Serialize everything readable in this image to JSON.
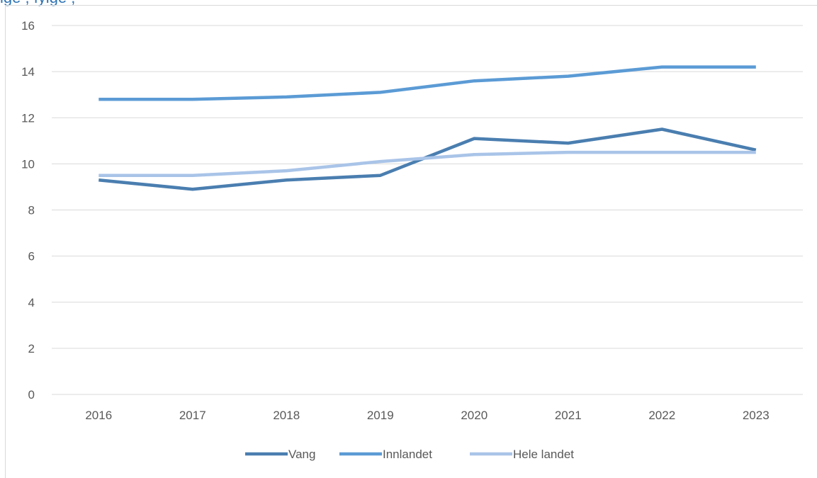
{
  "caption": "ige                         , fylge                                 ,",
  "chart_data": {
    "type": "line",
    "categories": [
      "2016",
      "2017",
      "2018",
      "2019",
      "2020",
      "2021",
      "2022",
      "2023"
    ],
    "series": [
      {
        "name": "Vang",
        "color": "#4a7eb0",
        "values": [
          9.3,
          8.9,
          9.3,
          9.5,
          11.1,
          10.9,
          11.5,
          10.6
        ]
      },
      {
        "name": "Innlandet",
        "color": "#5b9bd5",
        "values": [
          12.8,
          12.8,
          12.9,
          13.1,
          13.6,
          13.8,
          14.2,
          14.2
        ]
      },
      {
        "name": "Hele landet",
        "color": "#a9c4e8",
        "values": [
          9.5,
          9.5,
          9.7,
          10.1,
          10.4,
          10.5,
          10.5,
          10.5
        ]
      }
    ],
    "ylim": [
      0,
      16
    ],
    "yticks": [
      "0",
      "2",
      "4",
      "6",
      "8",
      "10",
      "12",
      "14",
      "16"
    ],
    "grid": true,
    "legend": "bottom"
  }
}
